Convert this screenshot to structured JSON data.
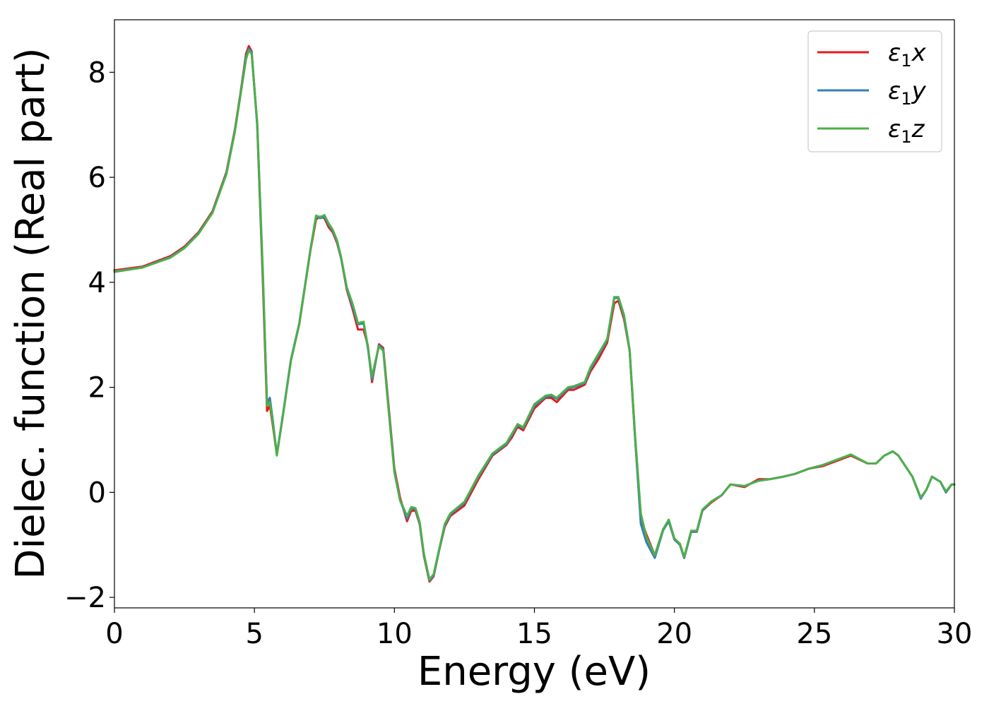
{
  "chart_data": {
    "type": "line",
    "xlabel": "Energy (eV)",
    "ylabel": "Dielec. function (Real part)",
    "xlim": [
      0,
      30
    ],
    "ylim": [
      -2.2,
      9.0
    ],
    "xticks": [
      0,
      5,
      10,
      15,
      20,
      25,
      30
    ],
    "xtick_labels": [
      "0",
      "5",
      "10",
      "15",
      "20",
      "25",
      "30"
    ],
    "yticks": [
      -2,
      0,
      2,
      4,
      6,
      8
    ],
    "ytick_labels": [
      "−2",
      "0",
      "2",
      "4",
      "6",
      "8"
    ],
    "grid": false,
    "legend_position": "top-right",
    "series": [
      {
        "name": "ε₁x",
        "legend": {
          "base": "ε",
          "sub": "1",
          "var": "x"
        },
        "color": "#e41a1c",
        "x": [
          0,
          1,
          2,
          2.5,
          3,
          3.5,
          4,
          4.3,
          4.5,
          4.7,
          4.8,
          4.9,
          5.1,
          5.3,
          5.45,
          5.55,
          5.65,
          5.8,
          6.0,
          6.3,
          6.6,
          7.0,
          7.2,
          7.35,
          7.5,
          7.65,
          7.8,
          7.95,
          8.1,
          8.3,
          8.5,
          8.7,
          8.9,
          9.05,
          9.2,
          9.3,
          9.45,
          9.6,
          9.8,
          10.0,
          10.2,
          10.45,
          10.6,
          10.75,
          10.9,
          11.05,
          11.25,
          11.4,
          11.6,
          11.8,
          12.0,
          12.5,
          13.0,
          13.5,
          14.0,
          14.2,
          14.4,
          14.6,
          15.0,
          15.4,
          15.6,
          15.8,
          16.2,
          16.4,
          16.8,
          17.0,
          17.3,
          17.6,
          17.85,
          18.0,
          18.2,
          18.4,
          18.6,
          18.8,
          19.0,
          19.3,
          19.6,
          19.8,
          20.0,
          20.2,
          20.35,
          20.6,
          20.8,
          21.0,
          21.3,
          21.7,
          22.0,
          22.5,
          23.0,
          23.4,
          23.9,
          24.3,
          24.8,
          25.3,
          25.8,
          26.3,
          26.9,
          27.2,
          27.5,
          27.8,
          28.0,
          28.5,
          28.8,
          29.0,
          29.2,
          29.5,
          29.7,
          29.9,
          30.0
        ],
        "y": [
          4.23,
          4.3,
          4.5,
          4.68,
          4.95,
          5.35,
          6.1,
          6.9,
          7.6,
          8.35,
          8.5,
          8.4,
          7.0,
          4.0,
          1.55,
          1.65,
          1.3,
          0.72,
          1.4,
          2.5,
          3.2,
          4.6,
          5.2,
          5.25,
          5.22,
          5.05,
          4.95,
          4.75,
          4.45,
          3.85,
          3.5,
          3.1,
          3.1,
          2.8,
          2.1,
          2.4,
          2.82,
          2.75,
          1.6,
          0.45,
          -0.1,
          -0.55,
          -0.35,
          -0.35,
          -0.6,
          -1.2,
          -1.7,
          -1.6,
          -1.1,
          -0.65,
          -0.45,
          -0.25,
          0.25,
          0.7,
          0.9,
          1.05,
          1.25,
          1.18,
          1.6,
          1.8,
          1.8,
          1.72,
          1.95,
          1.95,
          2.05,
          2.3,
          2.55,
          2.85,
          3.6,
          3.65,
          3.3,
          2.7,
          1.0,
          -0.5,
          -0.8,
          -1.2,
          -0.7,
          -0.55,
          -0.9,
          -1.0,
          -1.25,
          -0.75,
          -0.75,
          -0.35,
          -0.2,
          -0.05,
          0.15,
          0.1,
          0.25,
          0.25,
          0.3,
          0.35,
          0.45,
          0.5,
          0.6,
          0.7,
          0.55,
          0.55,
          0.7,
          0.78,
          0.7,
          0.3,
          -0.1,
          0.05,
          0.3,
          0.2,
          0.0,
          0.15,
          0.15
        ]
      },
      {
        "name": "ε₁y",
        "legend": {
          "base": "ε",
          "sub": "1",
          "var": "y"
        },
        "color": "#377eb8",
        "x": [
          0,
          1,
          2,
          2.5,
          3,
          3.5,
          4,
          4.3,
          4.5,
          4.7,
          4.8,
          4.9,
          5.1,
          5.3,
          5.45,
          5.55,
          5.65,
          5.8,
          6.0,
          6.3,
          6.6,
          7.0,
          7.2,
          7.35,
          7.5,
          7.65,
          7.8,
          7.95,
          8.1,
          8.3,
          8.5,
          8.7,
          8.9,
          9.05,
          9.2,
          9.3,
          9.45,
          9.6,
          9.8,
          10.0,
          10.2,
          10.45,
          10.6,
          10.75,
          10.9,
          11.05,
          11.25,
          11.4,
          11.6,
          11.8,
          12.0,
          12.5,
          13.0,
          13.5,
          14.0,
          14.2,
          14.4,
          14.6,
          15.0,
          15.4,
          15.6,
          15.8,
          16.2,
          16.4,
          16.8,
          17.0,
          17.3,
          17.6,
          17.85,
          18.0,
          18.2,
          18.4,
          18.6,
          18.8,
          19.0,
          19.3,
          19.6,
          19.8,
          20.0,
          20.2,
          20.35,
          20.6,
          20.8,
          21.0,
          21.3,
          21.7,
          22.0,
          22.5,
          23.0,
          23.4,
          23.9,
          24.3,
          24.8,
          25.3,
          25.8,
          26.3,
          26.9,
          27.2,
          27.5,
          27.8,
          28.0,
          28.5,
          28.8,
          29.0,
          29.2,
          29.5,
          29.7,
          29.9,
          30.0
        ],
        "y": [
          4.2,
          4.28,
          4.48,
          4.66,
          4.93,
          5.33,
          6.08,
          6.88,
          7.58,
          8.3,
          8.45,
          8.38,
          7.0,
          4.1,
          1.7,
          1.8,
          1.4,
          0.72,
          1.42,
          2.52,
          3.22,
          4.62,
          5.25,
          5.22,
          5.25,
          5.1,
          4.98,
          4.78,
          4.45,
          3.87,
          3.55,
          3.2,
          3.22,
          2.75,
          2.15,
          2.42,
          2.8,
          2.72,
          1.55,
          0.4,
          -0.15,
          -0.5,
          -0.3,
          -0.32,
          -0.58,
          -1.18,
          -1.68,
          -1.58,
          -1.1,
          -0.62,
          -0.42,
          -0.2,
          0.3,
          0.72,
          0.92,
          1.1,
          1.28,
          1.22,
          1.65,
          1.82,
          1.84,
          1.78,
          1.98,
          2.0,
          2.08,
          2.35,
          2.62,
          2.9,
          3.7,
          3.7,
          3.35,
          2.7,
          1.0,
          -0.6,
          -0.95,
          -1.25,
          -0.72,
          -0.55,
          -0.9,
          -1.0,
          -1.25,
          -0.75,
          -0.75,
          -0.35,
          -0.18,
          -0.05,
          0.15,
          0.12,
          0.22,
          0.25,
          0.3,
          0.35,
          0.45,
          0.52,
          0.62,
          0.72,
          0.55,
          0.55,
          0.7,
          0.78,
          0.7,
          0.3,
          -0.12,
          0.05,
          0.3,
          0.2,
          0.0,
          0.15,
          0.15
        ]
      },
      {
        "name": "ε₁z",
        "legend": {
          "base": "ε",
          "sub": "1",
          "var": "z"
        },
        "color": "#4daf4a",
        "x": [
          0,
          1,
          2,
          2.5,
          3,
          3.5,
          4,
          4.3,
          4.5,
          4.7,
          4.8,
          4.9,
          5.1,
          5.3,
          5.45,
          5.55,
          5.65,
          5.8,
          6.0,
          6.3,
          6.6,
          7.0,
          7.2,
          7.35,
          7.5,
          7.65,
          7.8,
          7.95,
          8.1,
          8.3,
          8.5,
          8.7,
          8.9,
          9.05,
          9.2,
          9.3,
          9.45,
          9.6,
          9.8,
          10.0,
          10.2,
          10.45,
          10.6,
          10.75,
          10.9,
          11.05,
          11.25,
          11.4,
          11.6,
          11.8,
          12.0,
          12.5,
          13.0,
          13.5,
          14.0,
          14.2,
          14.4,
          14.6,
          15.0,
          15.4,
          15.6,
          15.8,
          16.2,
          16.4,
          16.8,
          17.0,
          17.3,
          17.6,
          17.85,
          18.0,
          18.2,
          18.4,
          18.6,
          18.8,
          19.0,
          19.3,
          19.6,
          19.8,
          20.0,
          20.2,
          20.35,
          20.6,
          20.8,
          21.0,
          21.3,
          21.7,
          22.0,
          22.5,
          23.0,
          23.4,
          23.9,
          24.3,
          24.8,
          25.3,
          25.8,
          26.3,
          26.9,
          27.2,
          27.5,
          27.8,
          28.0,
          28.5,
          28.8,
          29.0,
          29.2,
          29.5,
          29.7,
          29.9,
          30.0
        ],
        "y": [
          4.21,
          4.28,
          4.47,
          4.65,
          4.92,
          5.32,
          6.06,
          6.86,
          7.56,
          8.25,
          8.42,
          8.35,
          7.05,
          4.2,
          1.65,
          1.72,
          1.35,
          0.7,
          1.4,
          2.5,
          3.2,
          4.62,
          5.27,
          5.24,
          5.28,
          5.12,
          5.0,
          4.8,
          4.47,
          3.9,
          3.6,
          3.22,
          3.25,
          2.78,
          2.2,
          2.45,
          2.78,
          2.7,
          1.52,
          0.38,
          -0.15,
          -0.45,
          -0.28,
          -0.3,
          -0.56,
          -1.16,
          -1.66,
          -1.56,
          -1.08,
          -0.6,
          -0.4,
          -0.18,
          0.32,
          0.74,
          0.94,
          1.12,
          1.3,
          1.24,
          1.68,
          1.84,
          1.86,
          1.8,
          2.0,
          2.02,
          2.1,
          2.38,
          2.65,
          2.92,
          3.72,
          3.72,
          3.38,
          2.72,
          1.05,
          -0.4,
          -0.85,
          -1.2,
          -0.7,
          -0.52,
          -0.88,
          -0.98,
          -1.23,
          -0.73,
          -0.73,
          -0.33,
          -0.18,
          -0.05,
          0.15,
          0.12,
          0.22,
          0.25,
          0.3,
          0.35,
          0.45,
          0.52,
          0.62,
          0.72,
          0.55,
          0.55,
          0.7,
          0.78,
          0.7,
          0.3,
          -0.1,
          0.05,
          0.3,
          0.2,
          0.02,
          0.15,
          0.15
        ]
      }
    ]
  }
}
